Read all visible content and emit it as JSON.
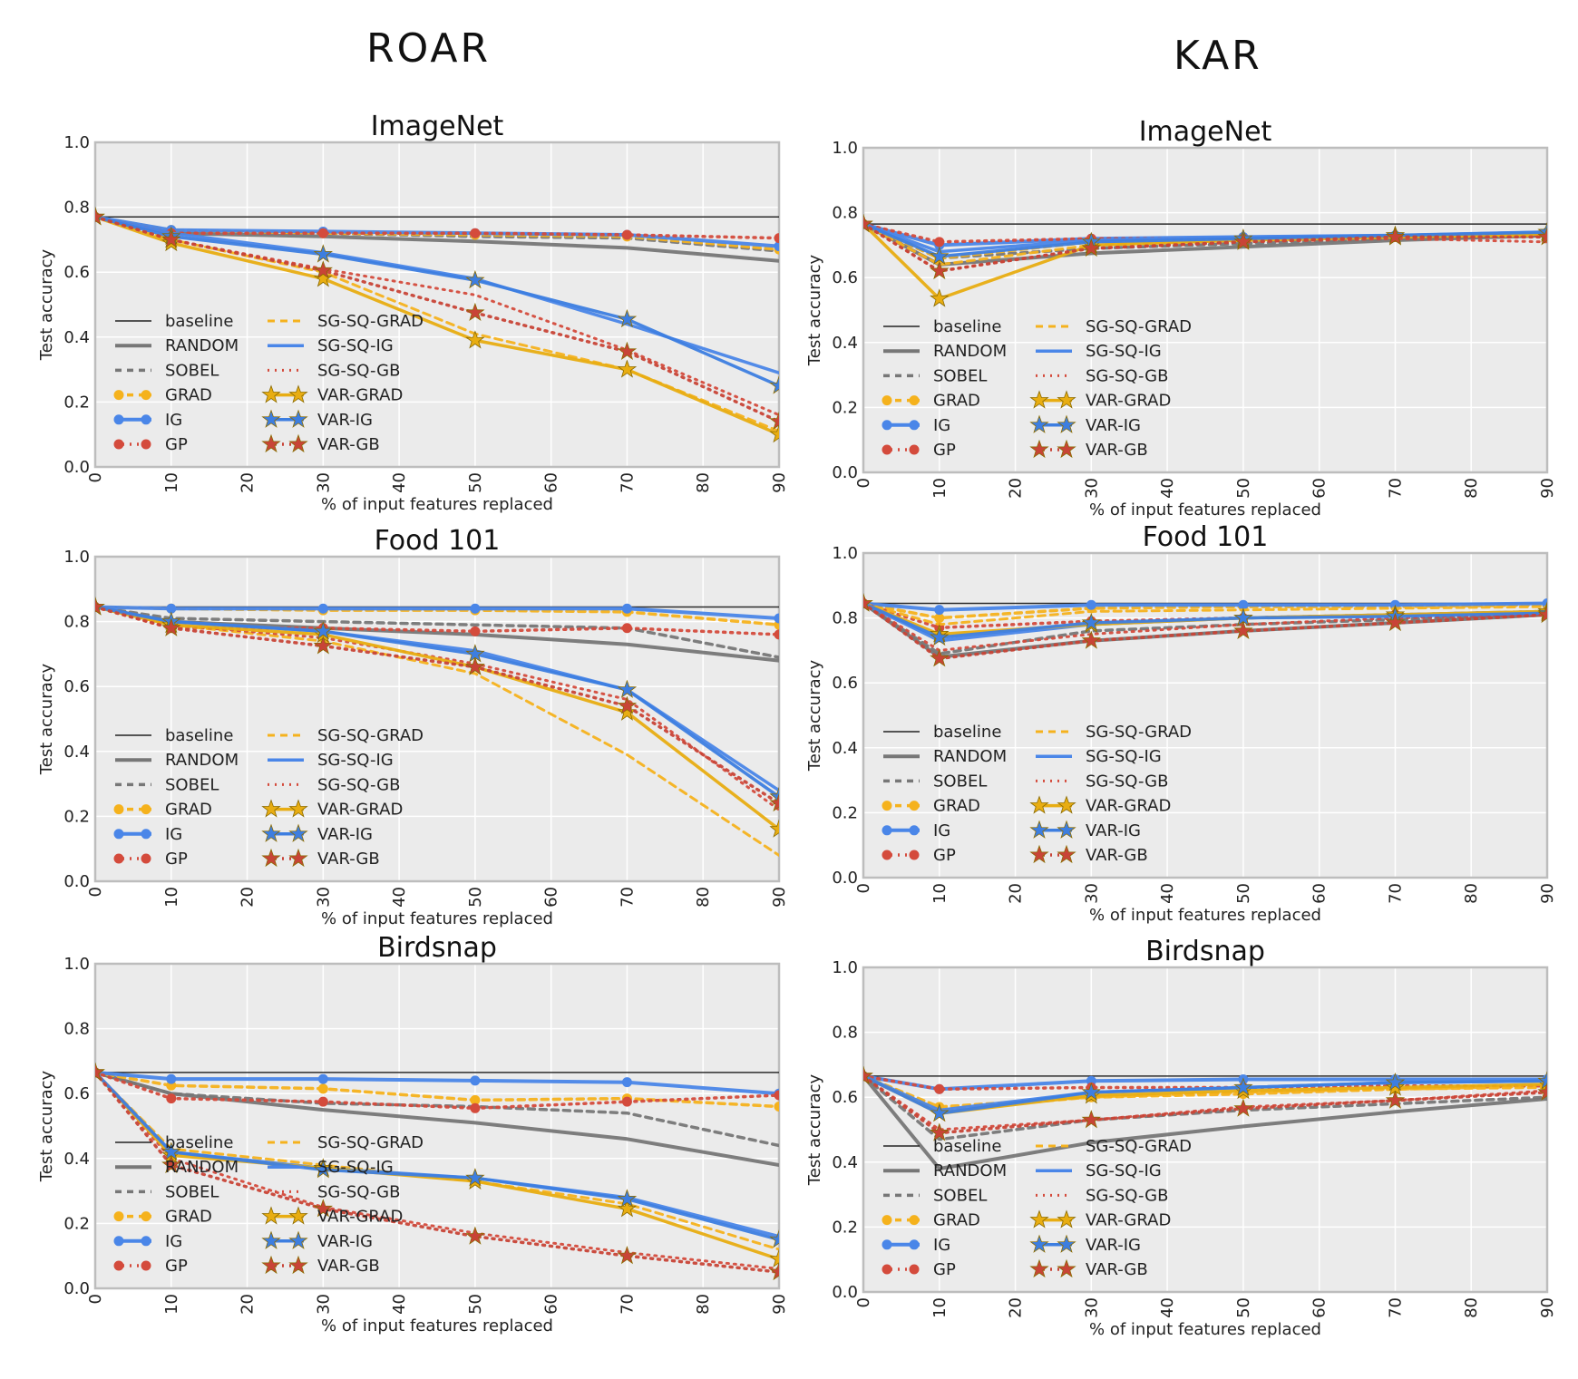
{
  "columns": {
    "left": "ROAR",
    "right": "KAR"
  },
  "colors": {
    "baseline": "#222222",
    "RANDOM": "#777777",
    "SOBEL": "#777777",
    "GRAD": "#f5b21d",
    "IG": "#4a86e8",
    "GP": "#d44b3c",
    "SG-SQ-GRAD": "#f5b21d",
    "SG-SQ-IG": "#4a86e8",
    "SG-SQ-GB": "#d44b3c",
    "VAR-GRAD": "#e8ad12",
    "VAR-IG": "#3d7ee0",
    "VAR-GB": "#c84437",
    "plot_bg": "#ebebeb",
    "grid": "#ffffff",
    "frame": "#bdbdbd"
  },
  "legend": {
    "col1": [
      "baseline",
      "RANDOM",
      "SOBEL",
      "GRAD",
      "IG",
      "GP"
    ],
    "col2": [
      "SG-SQ-GRAD",
      "SG-SQ-IG",
      "SG-SQ-GB",
      "VAR-GRAD",
      "VAR-IG",
      "VAR-GB"
    ]
  },
  "chart_data": [
    {
      "type": "line",
      "group": "ROAR",
      "title": "ImageNet",
      "xlabel": "% of input features replaced",
      "ylabel": "Test accuracy",
      "xlim": [
        0,
        90
      ],
      "ylim": [
        0,
        1.0
      ],
      "xticks": [
        "0",
        "10",
        "20",
        "30",
        "40",
        "50",
        "60",
        "70",
        "80",
        "90"
      ],
      "yticks": [
        "0.0",
        "0.2",
        "0.4",
        "0.6",
        "0.8",
        "1.0"
      ],
      "grid": true,
      "legend_position": "lower-left",
      "x": [
        0,
        10,
        30,
        50,
        70,
        90
      ],
      "series": [
        {
          "name": "baseline",
          "values": [
            0.77,
            0.77,
            0.77,
            0.77,
            0.77,
            0.77
          ]
        },
        {
          "name": "RANDOM",
          "values": [
            0.77,
            0.72,
            0.71,
            0.695,
            0.675,
            0.635
          ]
        },
        {
          "name": "SOBEL",
          "values": [
            0.77,
            0.73,
            0.72,
            0.71,
            0.705,
            0.665
          ]
        },
        {
          "name": "GRAD",
          "values": [
            0.77,
            0.73,
            0.72,
            0.715,
            0.71,
            0.67
          ]
        },
        {
          "name": "IG",
          "values": [
            0.77,
            0.73,
            0.725,
            0.72,
            0.715,
            0.68
          ]
        },
        {
          "name": "GP",
          "values": [
            0.77,
            0.72,
            0.72,
            0.72,
            0.715,
            0.705
          ]
        },
        {
          "name": "SG-SQ-GRAD",
          "values": [
            0.77,
            0.7,
            0.6,
            0.41,
            0.3,
            0.11
          ]
        },
        {
          "name": "SG-SQ-IG",
          "values": [
            0.77,
            0.72,
            0.66,
            0.58,
            0.44,
            0.29
          ]
        },
        {
          "name": "SG-SQ-GB",
          "values": [
            0.77,
            0.7,
            0.61,
            0.53,
            0.36,
            0.16
          ]
        },
        {
          "name": "VAR-GRAD",
          "values": [
            0.77,
            0.69,
            0.58,
            0.39,
            0.3,
            0.1
          ]
        },
        {
          "name": "VAR-IG",
          "values": [
            0.77,
            0.71,
            0.655,
            0.575,
            0.455,
            0.25
          ]
        },
        {
          "name": "VAR-GB",
          "values": [
            0.77,
            0.7,
            0.605,
            0.475,
            0.355,
            0.14
          ]
        }
      ]
    },
    {
      "type": "line",
      "group": "KAR",
      "title": "ImageNet",
      "xlabel": "% of input features replaced",
      "ylabel": "Test accuracy",
      "xlim": [
        0,
        90
      ],
      "ylim": [
        0,
        1.0
      ],
      "xticks": [
        "0",
        "10",
        "20",
        "30",
        "40",
        "50",
        "60",
        "70",
        "80",
        "90"
      ],
      "yticks": [
        "0.0",
        "0.2",
        "0.4",
        "0.6",
        "0.8",
        "1.0"
      ],
      "grid": true,
      "legend_position": "lower-left",
      "x": [
        0,
        10,
        30,
        50,
        70,
        90
      ],
      "series": [
        {
          "name": "baseline",
          "values": [
            0.765,
            0.765,
            0.765,
            0.765,
            0.765,
            0.765
          ]
        },
        {
          "name": "RANDOM",
          "values": [
            0.765,
            0.64,
            0.675,
            0.695,
            0.715,
            0.73
          ]
        },
        {
          "name": "SOBEL",
          "values": [
            0.765,
            0.66,
            0.69,
            0.705,
            0.72,
            0.73
          ]
        },
        {
          "name": "GRAD",
          "values": [
            0.765,
            0.66,
            0.71,
            0.72,
            0.725,
            0.735
          ]
        },
        {
          "name": "IG",
          "values": [
            0.765,
            0.7,
            0.72,
            0.725,
            0.73,
            0.74
          ]
        },
        {
          "name": "GP",
          "values": [
            0.765,
            0.71,
            0.72,
            0.72,
            0.725,
            0.73
          ]
        },
        {
          "name": "SG-SQ-GRAD",
          "values": [
            0.765,
            0.64,
            0.7,
            0.715,
            0.725,
            0.73
          ]
        },
        {
          "name": "SG-SQ-IG",
          "values": [
            0.765,
            0.68,
            0.715,
            0.725,
            0.73,
            0.74
          ]
        },
        {
          "name": "SG-SQ-GB",
          "values": [
            0.765,
            0.62,
            0.69,
            0.71,
            0.72,
            0.71
          ]
        },
        {
          "name": "VAR-GRAD",
          "values": [
            0.765,
            0.535,
            0.7,
            0.715,
            0.725,
            0.735
          ]
        },
        {
          "name": "VAR-IG",
          "values": [
            0.765,
            0.665,
            0.71,
            0.72,
            0.73,
            0.74
          ]
        },
        {
          "name": "VAR-GB",
          "values": [
            0.765,
            0.62,
            0.69,
            0.71,
            0.725,
            0.725
          ]
        }
      ]
    },
    {
      "type": "line",
      "group": "ROAR",
      "title": "Food 101",
      "xlabel": "% of input features replaced",
      "ylabel": "Test accuracy",
      "xlim": [
        0,
        90
      ],
      "ylim": [
        0,
        1.0
      ],
      "xticks": [
        "0",
        "10",
        "20",
        "30",
        "40",
        "50",
        "60",
        "70",
        "80",
        "90"
      ],
      "yticks": [
        "0.0",
        "0.2",
        "0.4",
        "0.6",
        "0.8",
        "1.0"
      ],
      "grid": true,
      "legend_position": "lower-left",
      "x": [
        0,
        10,
        30,
        50,
        70,
        90
      ],
      "series": [
        {
          "name": "baseline",
          "values": [
            0.845,
            0.845,
            0.845,
            0.845,
            0.845,
            0.845
          ]
        },
        {
          "name": "RANDOM",
          "values": [
            0.845,
            0.8,
            0.78,
            0.76,
            0.73,
            0.68
          ]
        },
        {
          "name": "SOBEL",
          "values": [
            0.845,
            0.81,
            0.8,
            0.79,
            0.78,
            0.69
          ]
        },
        {
          "name": "GRAD",
          "values": [
            0.845,
            0.84,
            0.835,
            0.835,
            0.83,
            0.79
          ]
        },
        {
          "name": "IG",
          "values": [
            0.845,
            0.84,
            0.84,
            0.84,
            0.84,
            0.81
          ]
        },
        {
          "name": "GP",
          "values": [
            0.845,
            0.78,
            0.78,
            0.77,
            0.78,
            0.76
          ]
        },
        {
          "name": "SG-SQ-GRAD",
          "values": [
            0.845,
            0.79,
            0.74,
            0.64,
            0.39,
            0.08
          ]
        },
        {
          "name": "SG-SQ-IG",
          "values": [
            0.845,
            0.8,
            0.77,
            0.71,
            0.59,
            0.28
          ]
        },
        {
          "name": "SG-SQ-GB",
          "values": [
            0.845,
            0.79,
            0.75,
            0.67,
            0.56,
            0.22
          ]
        },
        {
          "name": "VAR-GRAD",
          "values": [
            0.845,
            0.79,
            0.76,
            0.66,
            0.52,
            0.16
          ]
        },
        {
          "name": "VAR-IG",
          "values": [
            0.845,
            0.8,
            0.77,
            0.7,
            0.59,
            0.26
          ]
        },
        {
          "name": "VAR-GB",
          "values": [
            0.845,
            0.78,
            0.725,
            0.66,
            0.54,
            0.24
          ]
        }
      ]
    },
    {
      "type": "line",
      "group": "KAR",
      "title": "Food 101",
      "xlabel": "% of input features replaced",
      "ylabel": "Test accuracy",
      "xlim": [
        0,
        90
      ],
      "ylim": [
        0,
        1.0
      ],
      "xticks": [
        "0",
        "10",
        "20",
        "30",
        "40",
        "50",
        "60",
        "70",
        "80",
        "90"
      ],
      "yticks": [
        "0.0",
        "0.2",
        "0.4",
        "0.6",
        "0.8",
        "1.0"
      ],
      "grid": true,
      "legend_position": "lower-left",
      "x": [
        0,
        10,
        30,
        50,
        70,
        90
      ],
      "series": [
        {
          "name": "baseline",
          "values": [
            0.845,
            0.845,
            0.845,
            0.845,
            0.845,
            0.845
          ]
        },
        {
          "name": "RANDOM",
          "values": [
            0.845,
            0.68,
            0.73,
            0.76,
            0.785,
            0.81
          ]
        },
        {
          "name": "SOBEL",
          "values": [
            0.845,
            0.69,
            0.76,
            0.78,
            0.795,
            0.81
          ]
        },
        {
          "name": "GRAD",
          "values": [
            0.845,
            0.8,
            0.83,
            0.835,
            0.835,
            0.84
          ]
        },
        {
          "name": "IG",
          "values": [
            0.845,
            0.825,
            0.84,
            0.84,
            0.84,
            0.845
          ]
        },
        {
          "name": "GP",
          "values": [
            0.845,
            0.77,
            0.79,
            0.8,
            0.81,
            0.82
          ]
        },
        {
          "name": "SG-SQ-GRAD",
          "values": [
            0.845,
            0.78,
            0.82,
            0.825,
            0.83,
            0.835
          ]
        },
        {
          "name": "SG-SQ-IG",
          "values": [
            0.845,
            0.73,
            0.78,
            0.8,
            0.81,
            0.82
          ]
        },
        {
          "name": "SG-SQ-GB",
          "values": [
            0.845,
            0.7,
            0.75,
            0.78,
            0.8,
            0.81
          ]
        },
        {
          "name": "VAR-GRAD",
          "values": [
            0.845,
            0.75,
            0.78,
            0.8,
            0.81,
            0.82
          ]
        },
        {
          "name": "VAR-IG",
          "values": [
            0.845,
            0.74,
            0.785,
            0.8,
            0.805,
            0.815
          ]
        },
        {
          "name": "VAR-GB",
          "values": [
            0.845,
            0.675,
            0.73,
            0.76,
            0.785,
            0.81
          ]
        }
      ]
    },
    {
      "type": "line",
      "group": "ROAR",
      "title": "Birdsnap",
      "xlabel": "% of input features replaced",
      "ylabel": "Test accuracy",
      "xlim": [
        0,
        90
      ],
      "ylim": [
        0,
        1.0
      ],
      "xticks": [
        "0",
        "10",
        "20",
        "30",
        "40",
        "50",
        "60",
        "70",
        "80",
        "90"
      ],
      "yticks": [
        "0.0",
        "0.2",
        "0.4",
        "0.6",
        "0.8",
        "1.0"
      ],
      "grid": true,
      "legend_position": "lower-left",
      "x": [
        0,
        10,
        30,
        50,
        70,
        90
      ],
      "series": [
        {
          "name": "baseline",
          "values": [
            0.665,
            0.665,
            0.665,
            0.665,
            0.665,
            0.665
          ]
        },
        {
          "name": "RANDOM",
          "values": [
            0.665,
            0.6,
            0.55,
            0.51,
            0.46,
            0.38
          ]
        },
        {
          "name": "SOBEL",
          "values": [
            0.665,
            0.6,
            0.57,
            0.56,
            0.54,
            0.44
          ]
        },
        {
          "name": "GRAD",
          "values": [
            0.665,
            0.625,
            0.615,
            0.58,
            0.585,
            0.56
          ]
        },
        {
          "name": "IG",
          "values": [
            0.665,
            0.645,
            0.645,
            0.64,
            0.635,
            0.6
          ]
        },
        {
          "name": "GP",
          "values": [
            0.665,
            0.585,
            0.575,
            0.555,
            0.575,
            0.595
          ]
        },
        {
          "name": "SG-SQ-GRAD",
          "values": [
            0.665,
            0.43,
            0.38,
            0.33,
            0.26,
            0.12
          ]
        },
        {
          "name": "SG-SQ-IG",
          "values": [
            0.665,
            0.42,
            0.37,
            0.34,
            0.28,
            0.16
          ]
        },
        {
          "name": "SG-SQ-GB",
          "values": [
            0.665,
            0.4,
            0.25,
            0.17,
            0.11,
            0.06
          ]
        },
        {
          "name": "VAR-GRAD",
          "values": [
            0.665,
            0.41,
            0.37,
            0.33,
            0.245,
            0.09
          ]
        },
        {
          "name": "VAR-IG",
          "values": [
            0.665,
            0.42,
            0.365,
            0.34,
            0.275,
            0.15
          ]
        },
        {
          "name": "VAR-GB",
          "values": [
            0.665,
            0.38,
            0.245,
            0.16,
            0.1,
            0.05
          ]
        }
      ]
    },
    {
      "type": "line",
      "group": "KAR",
      "title": "Birdsnap",
      "xlabel": "% of input features replaced",
      "ylabel": "Test accuracy",
      "xlim": [
        0,
        90
      ],
      "ylim": [
        0,
        1.0
      ],
      "xticks": [
        "0",
        "10",
        "20",
        "30",
        "40",
        "50",
        "60",
        "70",
        "80",
        "90"
      ],
      "yticks": [
        "0.0",
        "0.2",
        "0.4",
        "0.6",
        "0.8",
        "1.0"
      ],
      "grid": true,
      "legend_position": "lower-left",
      "x": [
        0,
        10,
        30,
        50,
        70,
        90
      ],
      "series": [
        {
          "name": "baseline",
          "values": [
            0.665,
            0.665,
            0.665,
            0.665,
            0.665,
            0.665
          ]
        },
        {
          "name": "RANDOM",
          "values": [
            0.665,
            0.38,
            0.46,
            0.51,
            0.555,
            0.595
          ]
        },
        {
          "name": "SOBEL",
          "values": [
            0.665,
            0.47,
            0.53,
            0.56,
            0.58,
            0.6
          ]
        },
        {
          "name": "GRAD",
          "values": [
            0.665,
            0.57,
            0.6,
            0.61,
            0.625,
            0.635
          ]
        },
        {
          "name": "IG",
          "values": [
            0.665,
            0.625,
            0.65,
            0.655,
            0.655,
            0.655
          ]
        },
        {
          "name": "GP",
          "values": [
            0.665,
            0.625,
            0.63,
            0.63,
            0.635,
            0.635
          ]
        },
        {
          "name": "SG-SQ-GRAD",
          "values": [
            0.665,
            0.56,
            0.6,
            0.615,
            0.625,
            0.63
          ]
        },
        {
          "name": "SG-SQ-IG",
          "values": [
            0.665,
            0.56,
            0.615,
            0.63,
            0.645,
            0.65
          ]
        },
        {
          "name": "SG-SQ-GB",
          "values": [
            0.665,
            0.5,
            0.53,
            0.57,
            0.59,
            0.62
          ]
        },
        {
          "name": "VAR-GRAD",
          "values": [
            0.665,
            0.55,
            0.605,
            0.62,
            0.63,
            0.64
          ]
        },
        {
          "name": "VAR-IG",
          "values": [
            0.665,
            0.55,
            0.615,
            0.63,
            0.645,
            0.65
          ]
        },
        {
          "name": "VAR-GB",
          "values": [
            0.665,
            0.49,
            0.53,
            0.565,
            0.59,
            0.615
          ]
        }
      ]
    }
  ]
}
